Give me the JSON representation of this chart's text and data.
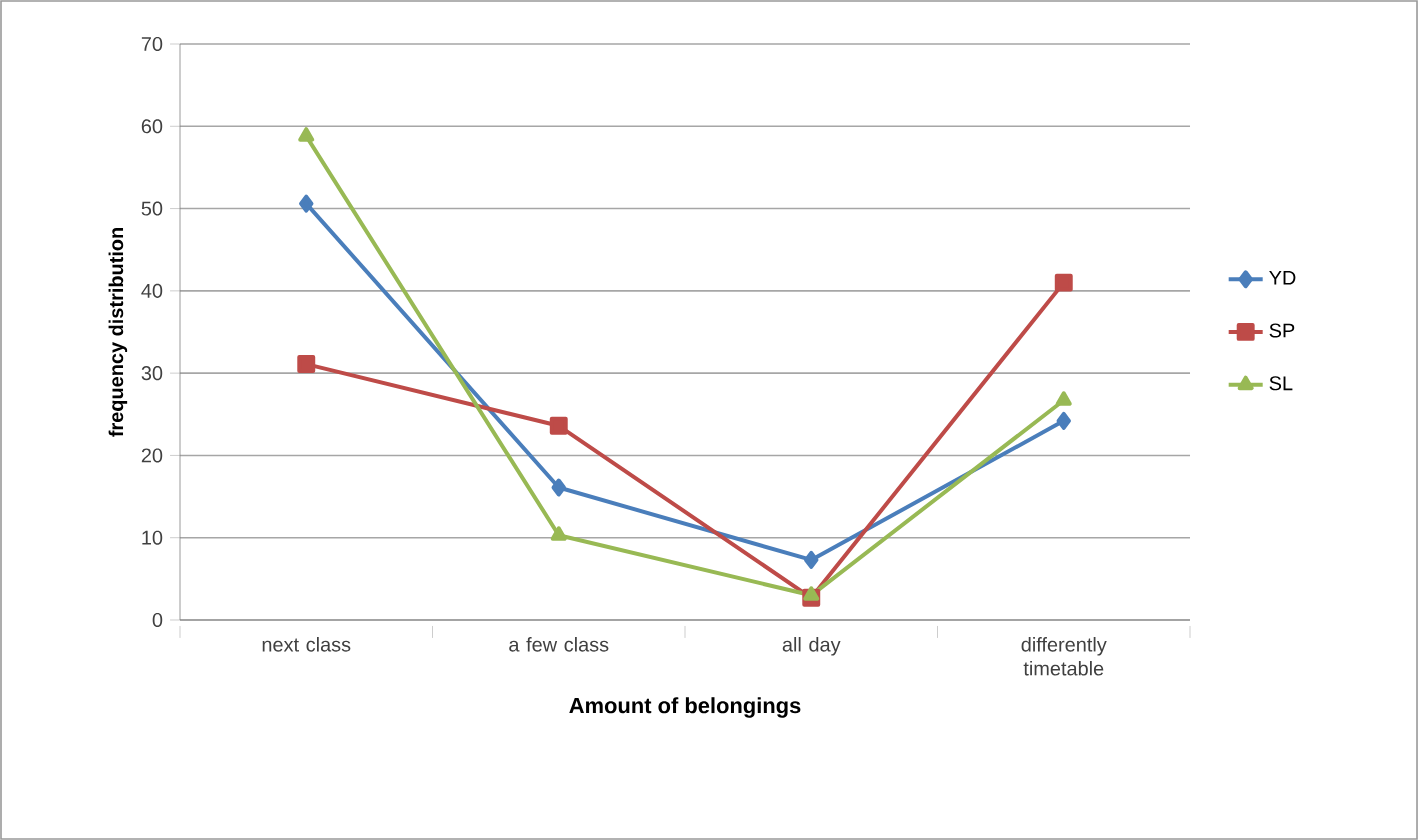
{
  "chart_data": {
    "type": "line",
    "xlabel": "Amount of belongings",
    "ylabel": "frequency distribution",
    "categories": [
      "next class",
      "a few class",
      "all day",
      "differently timetable"
    ],
    "series": [
      {
        "name": "YD",
        "color": "#4a7ebb",
        "marker": "diamond",
        "values": [
          50.6,
          16.1,
          7.3,
          24.2
        ]
      },
      {
        "name": "SP",
        "color": "#be4b48",
        "marker": "square",
        "values": [
          31.1,
          23.6,
          2.7,
          41
        ]
      },
      {
        "name": "SL",
        "color": "#98b954",
        "marker": "triangle",
        "values": [
          58.8,
          10.3,
          3,
          26.7
        ]
      }
    ],
    "ylim": [
      0,
      70
    ],
    "yticks": [
      0,
      10,
      20,
      30,
      40,
      50,
      60,
      70
    ],
    "grid": "y",
    "legend": "right",
    "line_style": "solid"
  }
}
